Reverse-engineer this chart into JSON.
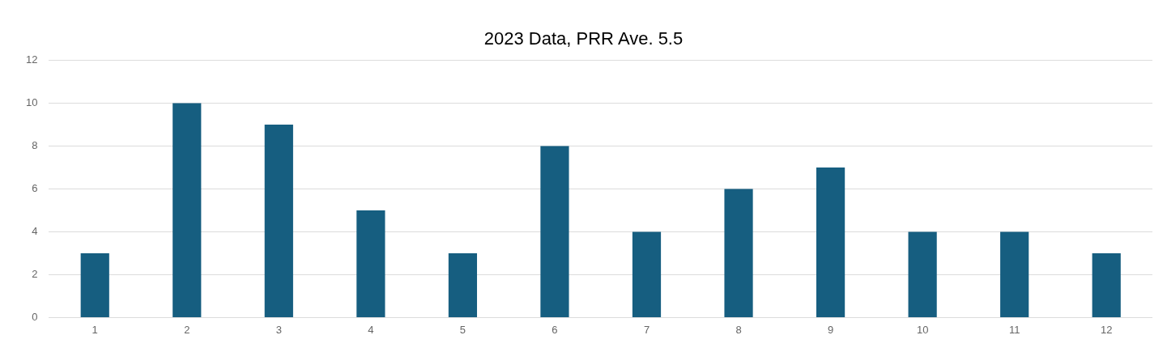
{
  "chart_data": {
    "type": "bar",
    "title": "2023 Data, PRR Ave. 5.5",
    "categories": [
      "1",
      "2",
      "3",
      "4",
      "5",
      "6",
      "7",
      "8",
      "9",
      "10",
      "11",
      "12"
    ],
    "values": [
      3,
      10,
      9,
      5,
      3,
      8,
      4,
      6,
      7,
      4,
      4,
      3
    ],
    "color": "#165e80",
    "ylim": [
      0,
      12
    ],
    "yticks": [
      0,
      2,
      4,
      6,
      8,
      10,
      12
    ],
    "grid": "y"
  }
}
